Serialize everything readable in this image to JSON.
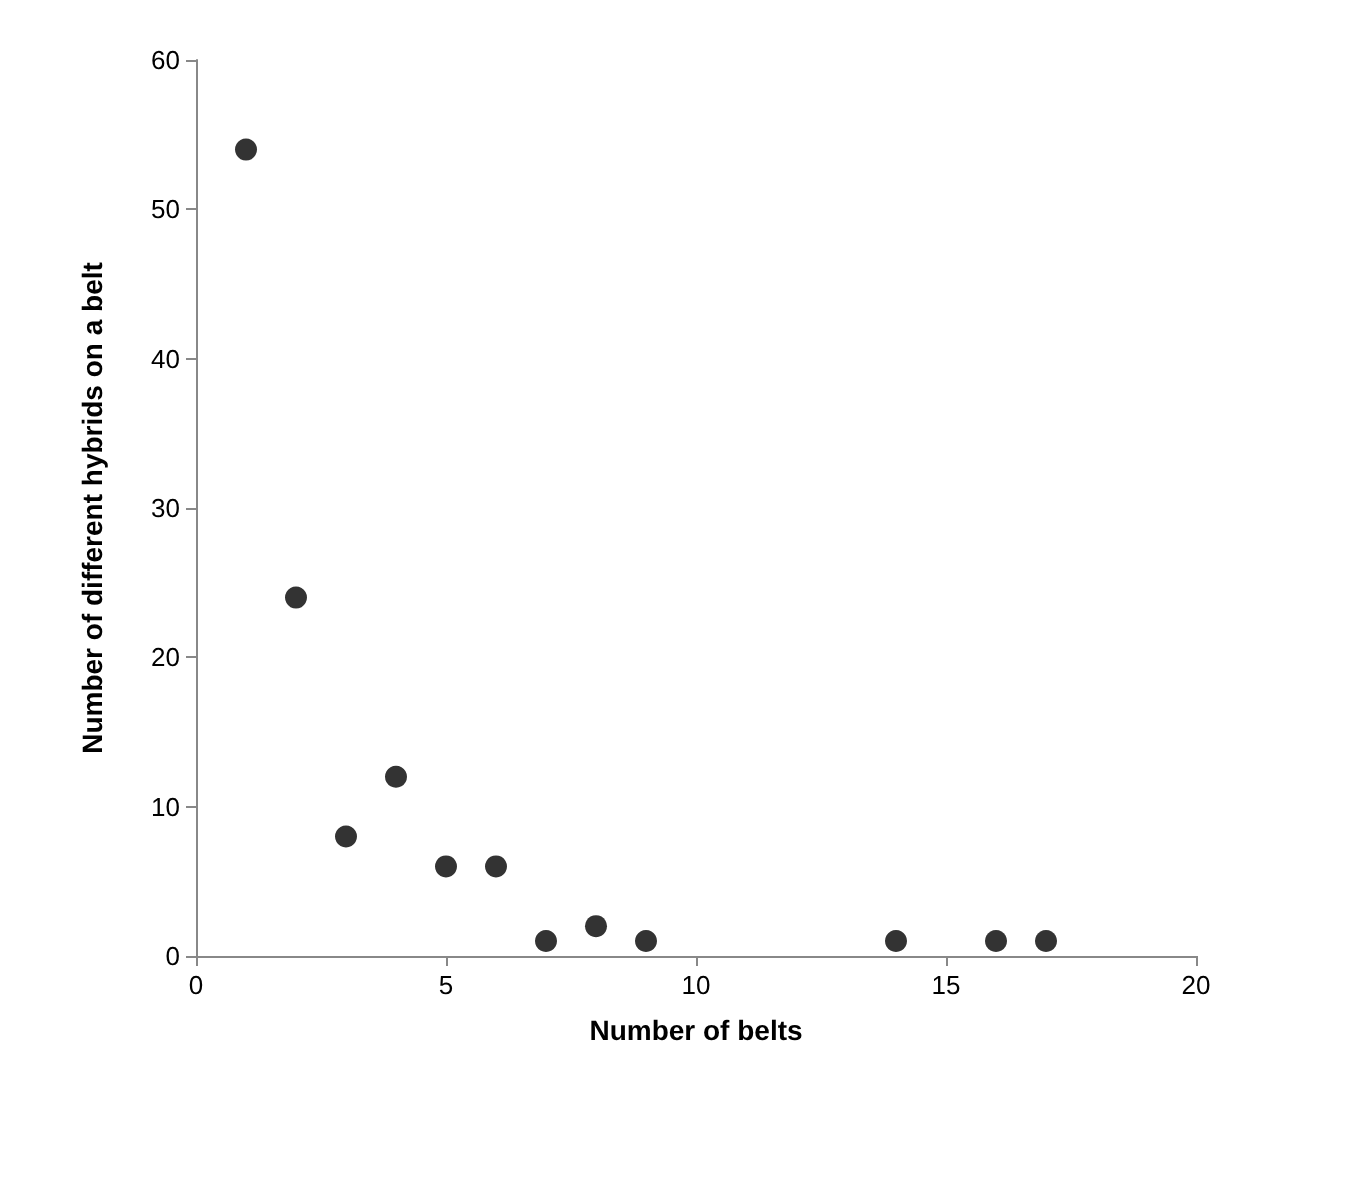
{
  "chart_data": {
    "type": "scatter",
    "xlabel": "Number of belts",
    "ylabel": "Number of different hybrids on a belt",
    "x": [
      1,
      2,
      3,
      4,
      5,
      6,
      7,
      8,
      9,
      14,
      16,
      17
    ],
    "series": [
      {
        "color": "#000000",
        "values": [
          54,
          24,
          8,
          12,
          6,
          6,
          1,
          2,
          1,
          1,
          1,
          1
        ]
      }
    ],
    "xlim": [
      0,
      20
    ],
    "xticks": [
      0,
      5,
      10,
      15,
      20
    ],
    "ylim": [
      0,
      60
    ],
    "yticks": [
      0,
      10,
      20,
      30,
      40,
      50,
      60
    ],
    "grid": false,
    "marker": "circle"
  }
}
